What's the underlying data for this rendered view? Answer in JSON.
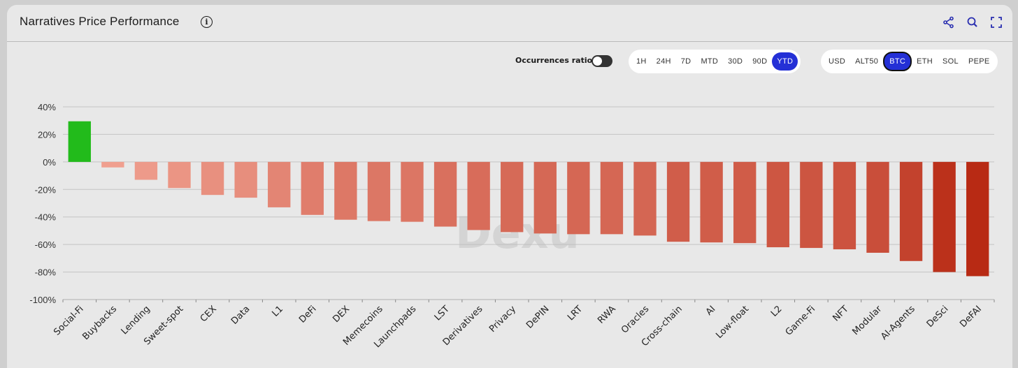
{
  "header": {
    "title": "Narratives Price Performance",
    "info_icon": "info-icon",
    "actions": [
      {
        "name": "share",
        "icon": "share-icon"
      },
      {
        "name": "zoom",
        "icon": "zoom-icon"
      },
      {
        "name": "fullscreen",
        "icon": "fullscreen-icon"
      }
    ]
  },
  "controls": {
    "occurrences_label": "Occurrences ratio",
    "occurrences_on": false,
    "timeframes": [
      "1H",
      "24H",
      "7D",
      "MTD",
      "30D",
      "90D",
      "YTD"
    ],
    "active_timeframe": "YTD",
    "bases": [
      "USD",
      "ALT50",
      "BTC",
      "ETH",
      "SOL",
      "PEPE"
    ],
    "active_base": "BTC"
  },
  "watermark": "Dexu",
  "colors": {
    "positive": "#22bb1b",
    "accent": "#2430d6",
    "neg_light": "#f0a090",
    "neg_dark": "#b82a14"
  },
  "chart_data": {
    "type": "bar",
    "title": "Narratives Price Performance",
    "xlabel": "",
    "ylabel": "",
    "ylim": [
      -100,
      40
    ],
    "yticks": [
      "40%",
      "20%",
      "0%",
      "-20%",
      "-40%",
      "-60%",
      "-80%",
      "-100%"
    ],
    "ytick_values": [
      40,
      20,
      0,
      -20,
      -40,
      -60,
      -80,
      -100
    ],
    "grid": true,
    "categories": [
      "Social-Fi",
      "Buybacks",
      "Lending",
      "Sweet-spot",
      "CEX",
      "Data",
      "L1",
      "DeFi",
      "DEX",
      "Memecoins",
      "Launchpads",
      "LST",
      "Derivatives",
      "Privacy",
      "DePIN",
      "LRT",
      "RWA",
      "Oracles",
      "Cross-chain",
      "AI",
      "Low-float",
      "L2",
      "Game-Fi",
      "NFT",
      "Modular",
      "AI-Agents",
      "DeSci",
      "DeFAI"
    ],
    "values": [
      29.5,
      -4,
      -13,
      -19,
      -24,
      -26,
      -33,
      -38.5,
      -42,
      -43,
      -43.5,
      -47,
      -49.5,
      -51,
      -52,
      -52.5,
      -52.5,
      -53.5,
      -58,
      -58.5,
      -59,
      -62,
      -62.5,
      -63.5,
      -66,
      -72,
      -80,
      -83
    ]
  }
}
